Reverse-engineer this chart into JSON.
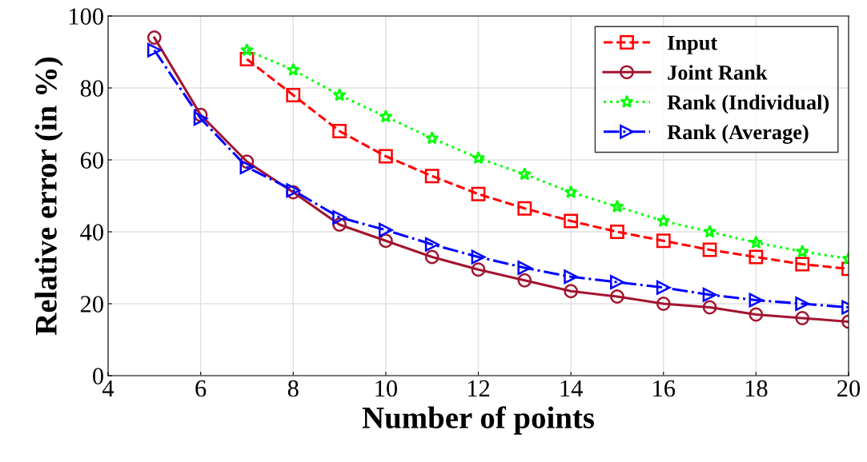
{
  "chart_data": {
    "type": "line",
    "xlabel": "Number of points",
    "ylabel": "Relative error (in %)",
    "xlim": [
      4,
      20
    ],
    "ylim": [
      0,
      100
    ],
    "xticks": [
      4,
      6,
      8,
      10,
      12,
      14,
      16,
      18,
      20
    ],
    "yticks": [
      0,
      20,
      40,
      60,
      80,
      100
    ],
    "grid": true,
    "legend": "top right",
    "series": [
      {
        "name": "Input",
        "color": "#ff0000",
        "marker": "square",
        "line_style": "dashed",
        "x": [
          7,
          8,
          9,
          10,
          11,
          12,
          13,
          14,
          15,
          16,
          17,
          18,
          19,
          20
        ],
        "values": [
          88,
          78,
          68,
          61,
          55.5,
          50.5,
          46.5,
          43,
          40,
          37.5,
          35,
          33,
          31,
          29.7
        ]
      },
      {
        "name": "Joint Rank",
        "color": "#a2142f",
        "marker": "circle",
        "line_style": "solid",
        "x": [
          5,
          6,
          7,
          8,
          9,
          10,
          11,
          12,
          13,
          14,
          15,
          16,
          17,
          18,
          19,
          20
        ],
        "values": [
          94,
          72.5,
          59.5,
          51,
          42,
          37.5,
          33,
          29.5,
          26.5,
          23.5,
          22,
          20,
          19,
          17,
          16,
          15
        ]
      },
      {
        "name": "Rank (Individual)",
        "color": "#00ff00",
        "marker": "star",
        "line_style": "dotted",
        "x": [
          7,
          8,
          9,
          10,
          11,
          12,
          13,
          14,
          15,
          16,
          17,
          18,
          19,
          20
        ],
        "values": [
          90.5,
          85,
          78,
          72,
          66,
          60.5,
          56,
          51,
          47,
          43,
          40,
          37,
          34.5,
          32.5
        ]
      },
      {
        "name": "Rank (Average)",
        "color": "#0000ff",
        "marker": "triangle",
        "line_style": "dashdot",
        "x": [
          5,
          6,
          7,
          8,
          9,
          10,
          11,
          12,
          13,
          14,
          15,
          16,
          17,
          18,
          19,
          20
        ],
        "values": [
          90.5,
          71.5,
          58,
          51.5,
          44,
          40.5,
          36.5,
          33,
          30,
          27.5,
          26,
          24.5,
          22.5,
          21,
          20,
          19
        ]
      }
    ]
  }
}
